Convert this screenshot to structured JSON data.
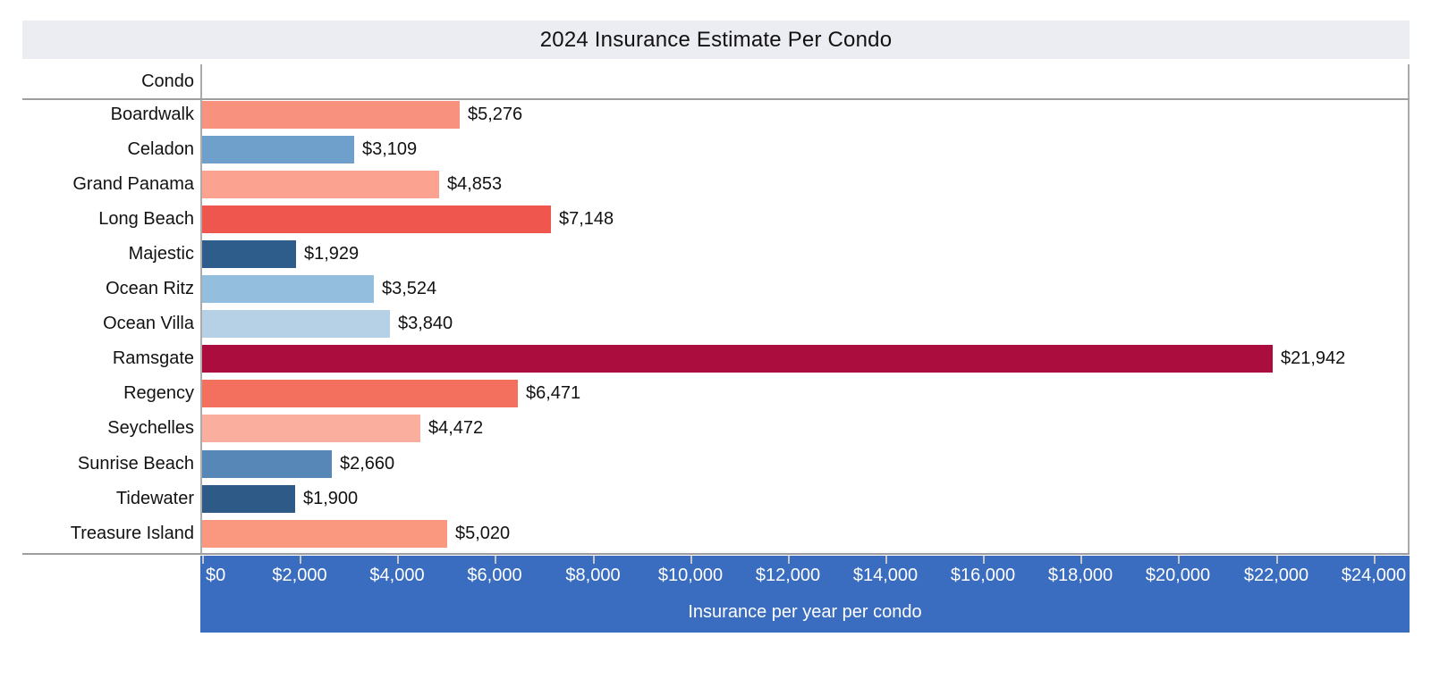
{
  "title": "2024 Insurance Estimate Per Condo",
  "header": {
    "condo_column_label": "Condo"
  },
  "axis": {
    "label": "Insurance per year per condo",
    "tick_values": [
      0,
      2000,
      4000,
      6000,
      8000,
      10000,
      12000,
      14000,
      16000,
      18000,
      20000,
      22000,
      24000
    ],
    "tick_labels": [
      "$0",
      "$2,000",
      "$4,000",
      "$6,000",
      "$8,000",
      "$10,000",
      "$12,000",
      "$14,000",
      "$16,000",
      "$18,000",
      "$20,000",
      "$22,000",
      "$24,000"
    ],
    "max_value": 24700,
    "band_color": "#3A6CBF",
    "tick_color": "#C6C6C6",
    "text_color": "#FFFFFF"
  },
  "colors": {
    "title_band_bg": "#ECEDF2",
    "grid_line": "#9E9E9E",
    "border_line": "#ABABAB",
    "label_text": "#121212"
  },
  "chart_data": {
    "type": "bar",
    "orientation": "horizontal",
    "title": "2024 Insurance Estimate Per Condo",
    "xlabel": "Insurance per year per condo",
    "ylabel": "Condo",
    "xlim": [
      0,
      24700
    ],
    "grid": false,
    "legend": false,
    "categories": [
      "Boardwalk",
      "Celadon",
      "Grand Panama",
      "Long Beach",
      "Majestic",
      "Ocean Ritz",
      "Ocean Villa",
      "Ramsgate",
      "Regency",
      "Seychelles",
      "Sunrise Beach",
      "Tidewater",
      "Treasure Island"
    ],
    "values": [
      5276,
      3109,
      4853,
      7148,
      1929,
      3524,
      3840,
      21942,
      6471,
      4472,
      2660,
      1900,
      5020
    ],
    "value_labels": [
      "$5,276",
      "$3,109",
      "$4,853",
      "$7,148",
      "$1,929",
      "$3,524",
      "$3,840",
      "$21,942",
      "$6,471",
      "$4,472",
      "$2,660",
      "$1,900",
      "$5,020"
    ],
    "bar_colors": [
      "#F8917E",
      "#6FA0CB",
      "#FBA390",
      "#EF564D",
      "#2E5C8B",
      "#94BEDE",
      "#B6D1E6",
      "#AB0D3E",
      "#F4705E",
      "#FAAE9D",
      "#5787B6",
      "#2D5A87",
      "#F9977F"
    ]
  }
}
